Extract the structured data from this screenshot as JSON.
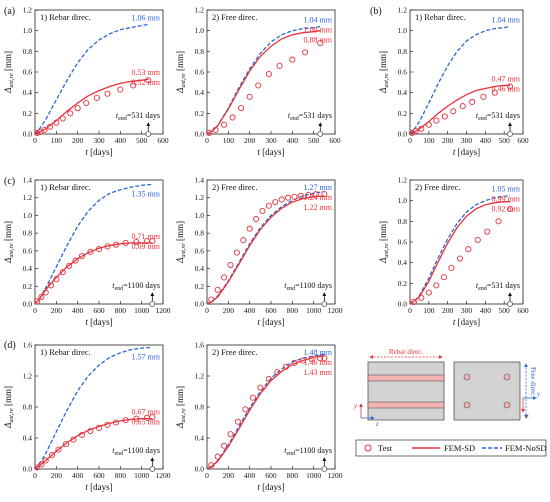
{
  "chart_data": [
    {
      "panel": "a1",
      "row": "(a)",
      "title": "1) Rebar direc.",
      "type": "line",
      "xlabel": "t [days]",
      "ylabel": "Δ_ast,re [mm]",
      "xlim": [
        0,
        600
      ],
      "ylim": [
        0,
        1.2
      ],
      "xticks": [
        "0",
        "100",
        "200",
        "300",
        "400",
        "500",
        "600"
      ],
      "yticks": [
        "0.0",
        "0.2",
        "0.4",
        "0.6",
        "0.8",
        "1.0",
        "1.2"
      ],
      "series": [
        {
          "name": "FEM-NoSD",
          "x": [
            0,
            25,
            50,
            100,
            150,
            200,
            250,
            300,
            350,
            400,
            450,
            500,
            531
          ],
          "values": [
            0,
            0.06,
            0.14,
            0.33,
            0.52,
            0.69,
            0.82,
            0.91,
            0.97,
            1.01,
            1.03,
            1.05,
            1.06
          ]
        },
        {
          "name": "FEM-SD",
          "x": [
            0,
            25,
            50,
            100,
            150,
            200,
            250,
            300,
            350,
            400,
            450,
            500,
            531
          ],
          "values": [
            0,
            0.02,
            0.05,
            0.13,
            0.22,
            0.3,
            0.37,
            0.42,
            0.46,
            0.49,
            0.51,
            0.52,
            0.53
          ]
        },
        {
          "name": "Test",
          "x": [
            10,
            25,
            45,
            70,
            100,
            130,
            165,
            200,
            240,
            290,
            340,
            400,
            460,
            531
          ],
          "values": [
            0.01,
            0.02,
            0.04,
            0.07,
            0.11,
            0.15,
            0.2,
            0.25,
            0.3,
            0.35,
            0.39,
            0.43,
            0.47,
            0.52
          ]
        }
      ],
      "annotations": {
        "blue": "1.06 mm",
        "red1": "0.53 mm",
        "red2": "0.52 mm",
        "tend": "t_end=531 days"
      }
    },
    {
      "panel": "a2",
      "row": "",
      "title": "2) Free direc.",
      "type": "line",
      "xlabel": "t [days]",
      "ylabel": "Δ_ast,re [mm]",
      "xlim": [
        0,
        600
      ],
      "ylim": [
        0,
        1.2
      ],
      "xticks": [
        "0",
        "100",
        "200",
        "300",
        "400",
        "500",
        "600"
      ],
      "yticks": [
        "0.0",
        "0.2",
        "0.4",
        "0.6",
        "0.8",
        "1.0",
        "1.2"
      ],
      "series": [
        {
          "name": "FEM-NoSD",
          "x": [
            0,
            25,
            50,
            100,
            150,
            200,
            250,
            300,
            350,
            400,
            450,
            500,
            531
          ],
          "values": [
            0,
            0.03,
            0.08,
            0.25,
            0.45,
            0.63,
            0.78,
            0.89,
            0.96,
            1.0,
            1.02,
            1.03,
            1.04
          ]
        },
        {
          "name": "FEM-SD",
          "x": [
            0,
            25,
            50,
            100,
            150,
            200,
            250,
            300,
            350,
            400,
            450,
            500,
            531
          ],
          "values": [
            0,
            0.03,
            0.08,
            0.24,
            0.43,
            0.61,
            0.75,
            0.85,
            0.92,
            0.96,
            0.98,
            0.99,
            1.0
          ]
        },
        {
          "name": "Test",
          "x": [
            10,
            40,
            80,
            120,
            160,
            200,
            240,
            290,
            340,
            400,
            460,
            531
          ],
          "values": [
            0.01,
            0.04,
            0.09,
            0.16,
            0.25,
            0.36,
            0.47,
            0.58,
            0.66,
            0.72,
            0.79,
            0.88
          ]
        }
      ],
      "annotations": {
        "blue": "1.04 mm",
        "red1": "1.00 mm",
        "red2": "0.88 mm",
        "tend": "t_end=531 days"
      }
    },
    {
      "panel": "b1",
      "row": "(b)",
      "title": "1) Rebar direc.",
      "type": "line",
      "xlabel": "t [days]",
      "ylabel": "Δ_ast,re [mm]",
      "xlim": [
        0,
        600
      ],
      "ylim": [
        0,
        1.2
      ],
      "xticks": [
        "0",
        "100",
        "200",
        "300",
        "400",
        "500",
        "600"
      ],
      "yticks": [
        "0.0",
        "0.2",
        "0.4",
        "0.6",
        "0.8",
        "1.0",
        "1.2"
      ],
      "series": [
        {
          "name": "FEM-NoSD",
          "x": [
            0,
            25,
            50,
            100,
            150,
            200,
            250,
            300,
            350,
            400,
            450,
            500,
            531
          ],
          "values": [
            0,
            0.05,
            0.12,
            0.3,
            0.49,
            0.66,
            0.8,
            0.9,
            0.96,
            1.0,
            1.02,
            1.03,
            1.04
          ]
        },
        {
          "name": "FEM-SD",
          "x": [
            0,
            25,
            50,
            100,
            150,
            200,
            250,
            300,
            350,
            400,
            450,
            500,
            531
          ],
          "values": [
            0,
            0.02,
            0.05,
            0.12,
            0.2,
            0.27,
            0.33,
            0.38,
            0.42,
            0.44,
            0.46,
            0.47,
            0.47
          ]
        },
        {
          "name": "Test",
          "x": [
            10,
            30,
            60,
            100,
            140,
            185,
            230,
            280,
            330,
            390,
            450,
            531
          ],
          "values": [
            0.01,
            0.03,
            0.05,
            0.09,
            0.13,
            0.17,
            0.22,
            0.27,
            0.31,
            0.36,
            0.4,
            0.46
          ]
        }
      ],
      "annotations": {
        "blue": "1.04 mm",
        "red1": "0.47 mm",
        "red2": "0.46 mm",
        "tend": "t_end=531 days"
      }
    },
    {
      "panel": "c1",
      "row": "(c)",
      "title": "1) Rebar direc.",
      "type": "line",
      "xlabel": "t [days]",
      "ylabel": "Δ_ast,re [mm]",
      "xlim": [
        0,
        1200
      ],
      "ylim": [
        0,
        1.4
      ],
      "xticks": [
        "0",
        "200",
        "400",
        "600",
        "800",
        "1000",
        "1200"
      ],
      "yticks": [
        "0.0",
        "0.2",
        "0.4",
        "0.6",
        "0.8",
        "1.0",
        "1.2",
        "1.4"
      ],
      "series": [
        {
          "name": "FEM-NoSD",
          "x": [
            0,
            50,
            100,
            200,
            300,
            400,
            500,
            600,
            700,
            800,
            900,
            1000,
            1100
          ],
          "values": [
            0,
            0.07,
            0.18,
            0.42,
            0.66,
            0.88,
            1.05,
            1.17,
            1.25,
            1.29,
            1.32,
            1.34,
            1.35
          ]
        },
        {
          "name": "FEM-SD",
          "x": [
            0,
            50,
            100,
            200,
            300,
            400,
            500,
            600,
            700,
            800,
            900,
            1000,
            1100
          ],
          "values": [
            0,
            0.07,
            0.16,
            0.3,
            0.42,
            0.51,
            0.58,
            0.63,
            0.66,
            0.68,
            0.69,
            0.69,
            0.69
          ]
        },
        {
          "name": "Test",
          "x": [
            20,
            60,
            100,
            150,
            200,
            260,
            320,
            380,
            440,
            520,
            600,
            680,
            760,
            850,
            950,
            1050,
            1100
          ],
          "values": [
            0.03,
            0.08,
            0.13,
            0.21,
            0.28,
            0.36,
            0.43,
            0.49,
            0.54,
            0.59,
            0.62,
            0.65,
            0.67,
            0.69,
            0.7,
            0.71,
            0.71
          ]
        }
      ],
      "annotations": {
        "blue": "1.35 mm",
        "red1": "0.71 mm",
        "red2": "0.69 mm",
        "tend": "t_end=1100 days"
      }
    },
    {
      "panel": "c2",
      "row": "",
      "title": "2) Free direc.",
      "type": "line",
      "xlabel": "t [days]",
      "ylabel": "Δ_ast,re [mm]",
      "xlim": [
        0,
        1200
      ],
      "ylim": [
        0,
        1.4
      ],
      "xticks": [
        "0",
        "200",
        "400",
        "600",
        "800",
        "1000",
        "1200"
      ],
      "yticks": [
        "0.0",
        "0.2",
        "0.4",
        "0.6",
        "0.8",
        "1.0",
        "1.2",
        "1.4"
      ],
      "series": [
        {
          "name": "FEM-NoSD",
          "x": [
            0,
            50,
            100,
            200,
            300,
            400,
            500,
            600,
            700,
            800,
            900,
            1000,
            1100
          ],
          "values": [
            0,
            0.03,
            0.09,
            0.26,
            0.47,
            0.68,
            0.86,
            1.0,
            1.1,
            1.17,
            1.22,
            1.25,
            1.27
          ]
        },
        {
          "name": "FEM-SD",
          "x": [
            0,
            50,
            100,
            200,
            300,
            400,
            500,
            600,
            700,
            800,
            900,
            1000,
            1100
          ],
          "values": [
            0,
            0.03,
            0.08,
            0.25,
            0.45,
            0.66,
            0.84,
            0.98,
            1.08,
            1.15,
            1.19,
            1.21,
            1.22
          ]
        },
        {
          "name": "Test",
          "x": [
            40,
            100,
            160,
            220,
            280,
            340,
            400,
            460,
            520,
            580,
            640,
            700,
            760,
            820,
            880,
            950,
            1020,
            1100
          ],
          "values": [
            0.05,
            0.16,
            0.3,
            0.44,
            0.58,
            0.72,
            0.85,
            0.96,
            1.05,
            1.11,
            1.15,
            1.18,
            1.2,
            1.21,
            1.22,
            1.23,
            1.24,
            1.24
          ]
        }
      ],
      "annotations": {
        "blue": "1.27 mm",
        "red1": "1.24 mm",
        "red2": "1.22 mm",
        "tend": "t_end=1100 days"
      }
    },
    {
      "panel": "c3",
      "row": "",
      "title": "2) Free direc.",
      "type": "line",
      "xlabel": "t [days]",
      "ylabel": "Δ_ast,re [mm]",
      "xlim": [
        0,
        600
      ],
      "ylim": [
        0,
        1.2
      ],
      "xticks": [
        "0",
        "100",
        "200",
        "300",
        "400",
        "500",
        "600"
      ],
      "yticks": [
        "0.0",
        "0.2",
        "0.4",
        "0.6",
        "0.8",
        "1.0",
        "1.2"
      ],
      "series": [
        {
          "name": "FEM-NoSD",
          "x": [
            0,
            25,
            50,
            100,
            150,
            200,
            250,
            300,
            350,
            400,
            450,
            500,
            531
          ],
          "values": [
            0,
            0.03,
            0.08,
            0.25,
            0.45,
            0.63,
            0.78,
            0.89,
            0.96,
            1.0,
            1.03,
            1.04,
            1.05
          ]
        },
        {
          "name": "FEM-SD",
          "x": [
            0,
            25,
            50,
            100,
            150,
            200,
            250,
            300,
            350,
            400,
            450,
            500,
            531
          ],
          "values": [
            0,
            0.03,
            0.07,
            0.22,
            0.41,
            0.59,
            0.74,
            0.85,
            0.92,
            0.96,
            0.98,
            0.99,
            0.99
          ]
        },
        {
          "name": "Test",
          "x": [
            20,
            60,
            100,
            140,
            180,
            220,
            265,
            310,
            360,
            410,
            470,
            531
          ],
          "values": [
            0.02,
            0.06,
            0.11,
            0.18,
            0.26,
            0.35,
            0.44,
            0.53,
            0.62,
            0.7,
            0.8,
            0.92
          ]
        }
      ],
      "annotations": {
        "blue": "1.05 mm",
        "red1": "0.99 mm",
        "red2": "0.92 mm",
        "tend": "t_end=531 days"
      }
    },
    {
      "panel": "d1",
      "row": "(d)",
      "title": "1) Rebar direc.",
      "type": "line",
      "xlabel": "t [days]",
      "ylabel": "Δ_ast,re [mm]",
      "xlim": [
        0,
        1200
      ],
      "ylim": [
        0,
        1.6
      ],
      "xticks": [
        "0",
        "200",
        "400",
        "600",
        "800",
        "1000",
        "1200"
      ],
      "yticks": [
        "0.0",
        "0.4",
        "0.8",
        "1.2",
        "1.6"
      ],
      "series": [
        {
          "name": "FEM-NoSD",
          "x": [
            0,
            50,
            100,
            200,
            300,
            400,
            500,
            600,
            700,
            800,
            900,
            1000,
            1100
          ],
          "values": [
            0,
            0.08,
            0.2,
            0.48,
            0.76,
            1.01,
            1.2,
            1.34,
            1.44,
            1.5,
            1.54,
            1.56,
            1.57
          ]
        },
        {
          "name": "FEM-SD",
          "x": [
            0,
            50,
            100,
            200,
            300,
            400,
            500,
            600,
            700,
            800,
            900,
            1000,
            1100
          ],
          "values": [
            0,
            0.05,
            0.11,
            0.23,
            0.34,
            0.43,
            0.5,
            0.55,
            0.59,
            0.62,
            0.64,
            0.65,
            0.65
          ]
        },
        {
          "name": "Test",
          "x": [
            20,
            60,
            100,
            160,
            220,
            290,
            360,
            440,
            520,
            600,
            680,
            760,
            850,
            950,
            1050,
            1100
          ],
          "values": [
            0.02,
            0.06,
            0.11,
            0.18,
            0.25,
            0.32,
            0.38,
            0.44,
            0.49,
            0.53,
            0.57,
            0.6,
            0.63,
            0.65,
            0.66,
            0.67
          ]
        }
      ],
      "annotations": {
        "blue": "1.57 mm",
        "red1": "0.67 mm",
        "red2": "0.65 mm",
        "tend": "t_end=1100 days"
      }
    },
    {
      "panel": "d2",
      "row": "",
      "title": "2) Free direc.",
      "type": "line",
      "xlabel": "t [days]",
      "ylabel": "Δ_ast,re [mm]",
      "xlim": [
        0,
        1200
      ],
      "ylim": [
        0,
        1.6
      ],
      "xticks": [
        "0",
        "200",
        "400",
        "600",
        "800",
        "1000",
        "1200"
      ],
      "yticks": [
        "0.0",
        "0.4",
        "0.8",
        "1.2",
        "1.6"
      ],
      "series": [
        {
          "name": "FEM-NoSD",
          "x": [
            0,
            50,
            100,
            200,
            300,
            400,
            500,
            600,
            700,
            800,
            900,
            1000,
            1100
          ],
          "values": [
            0,
            0.04,
            0.11,
            0.31,
            0.55,
            0.79,
            1.0,
            1.17,
            1.29,
            1.38,
            1.43,
            1.46,
            1.48
          ]
        },
        {
          "name": "FEM-SD",
          "x": [
            0,
            50,
            100,
            200,
            300,
            400,
            500,
            600,
            700,
            800,
            900,
            1000,
            1100
          ],
          "values": [
            0,
            0.04,
            0.1,
            0.29,
            0.52,
            0.76,
            0.97,
            1.14,
            1.26,
            1.35,
            1.4,
            1.44,
            1.46
          ]
        },
        {
          "name": "Test",
          "x": [
            40,
            100,
            160,
            220,
            290,
            360,
            430,
            500,
            580,
            660,
            740,
            820,
            900,
            980,
            1060,
            1100
          ],
          "values": [
            0.05,
            0.16,
            0.3,
            0.45,
            0.61,
            0.77,
            0.92,
            1.05,
            1.16,
            1.25,
            1.32,
            1.37,
            1.4,
            1.42,
            1.43,
            1.43
          ]
        }
      ],
      "annotations": {
        "blue": "1.48 mm",
        "red1": "1.46 mm",
        "red2": "1.43 mm",
        "tend": "t_end=1100 days"
      }
    }
  ],
  "diagram": {
    "rebar_label": "Rebar direc.",
    "free_label": "Free direc.",
    "axis_y": "y",
    "axis_z": "z"
  },
  "legend": {
    "test": "Test",
    "fem_sd": "FEM-SD",
    "fem_nosd": "FEM-NoSD"
  },
  "colors": {
    "red": "#e8323c",
    "blue": "#2a66d6",
    "concrete": "#d3d3d3",
    "rebar": "#f4b3b3"
  }
}
